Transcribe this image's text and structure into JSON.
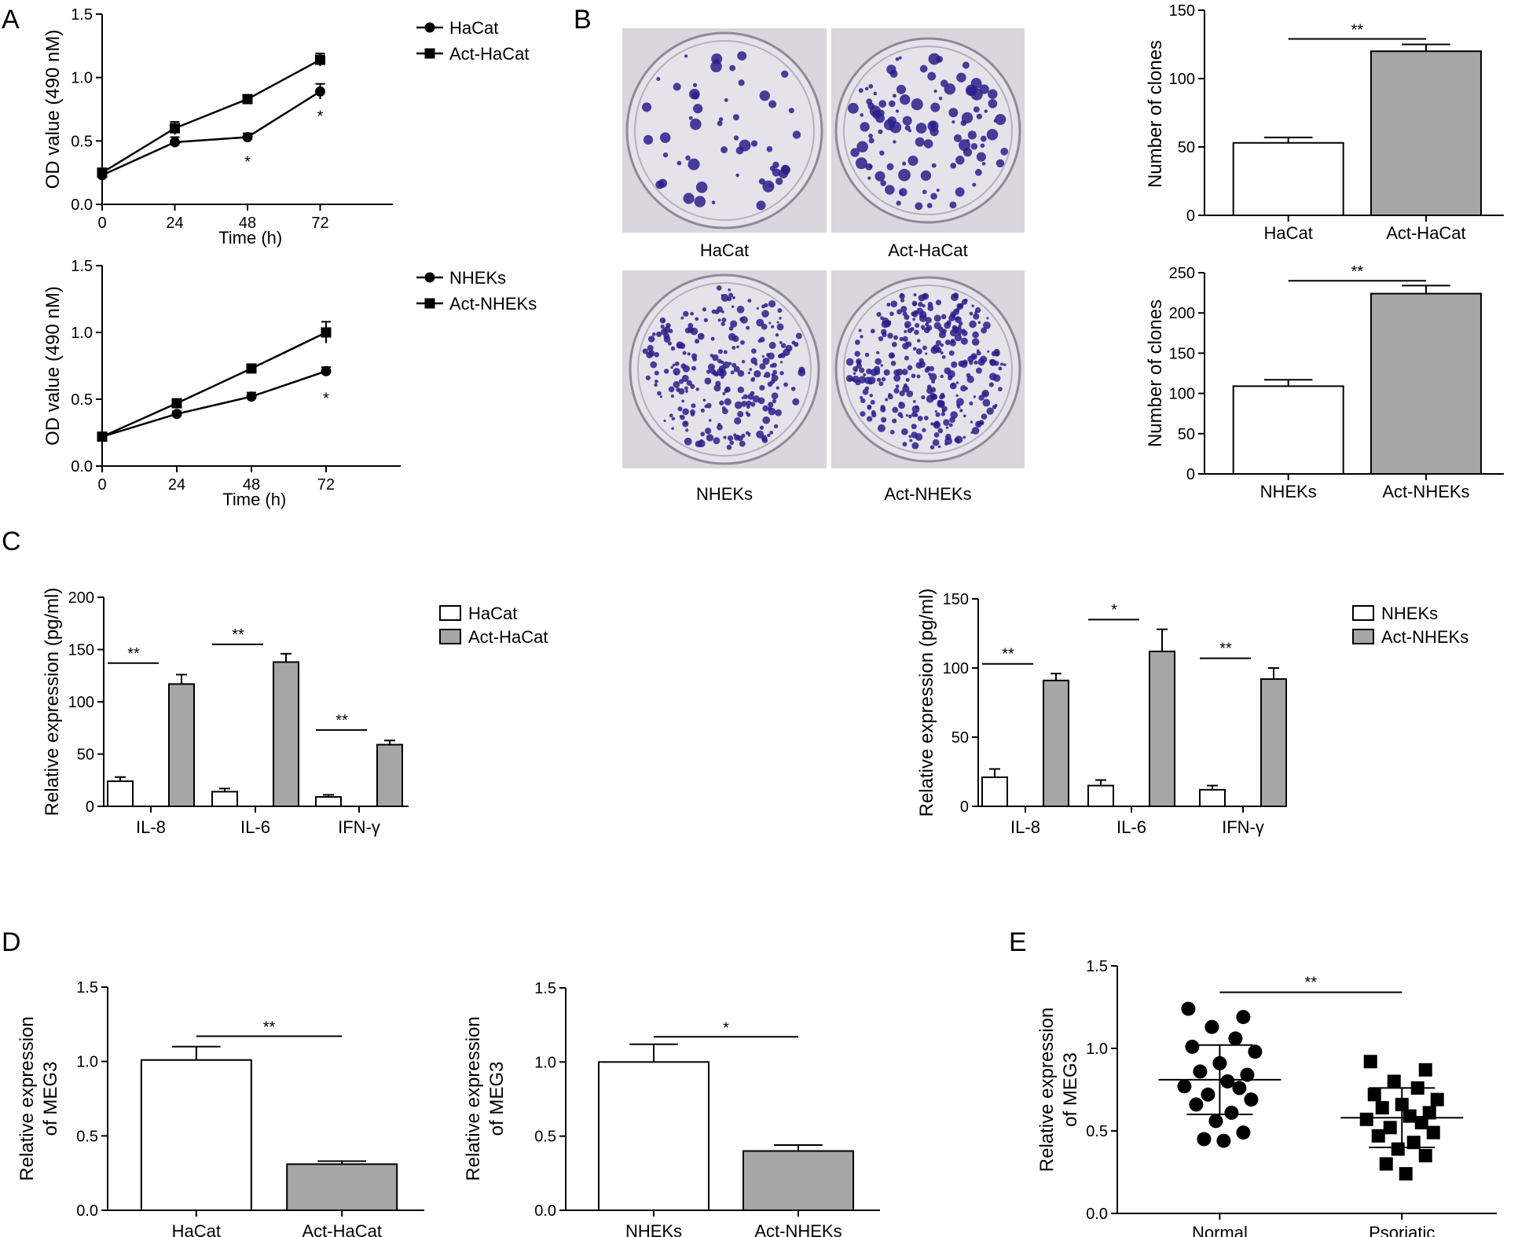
{
  "panel_labels": [
    "A",
    "B",
    "C",
    "D",
    "E"
  ],
  "photos": [
    {
      "label": "HaCat",
      "dots": 55,
      "style": "few"
    },
    {
      "label": "Act-HaCat",
      "dots": 110,
      "style": "few"
    },
    {
      "label": "NHEKs",
      "dots": 260,
      "style": "many"
    },
    {
      "label": "Act-NHEKs",
      "dots": 330,
      "style": "many"
    }
  ],
  "colors": {
    "control": "#ffffff",
    "act": "#a6a6a6",
    "ink": "#000000",
    "dish": "#cfcbd6",
    "colony": "#2a1f8a"
  },
  "chart_data": [
    {
      "id": "A1",
      "type": "line",
      "xlabel": "Time (h)",
      "ylabel": "OD value (490 nM)",
      "x": [
        0,
        24,
        48,
        72
      ],
      "xticks": [
        0,
        24,
        48,
        72
      ],
      "xlim": [
        0,
        96
      ],
      "ylim": [
        0,
        1.5
      ],
      "yticks": [
        0.0,
        0.5,
        1.0,
        1.5
      ],
      "series": [
        {
          "name": "HaCat",
          "marker": "circle",
          "values": [
            0.23,
            0.49,
            0.53,
            0.89
          ],
          "errors": [
            0.02,
            0.04,
            0.03,
            0.06
          ]
        },
        {
          "name": "Act-HaCat",
          "marker": "square",
          "values": [
            0.25,
            0.6,
            0.83,
            1.14
          ],
          "errors": [
            0.02,
            0.05,
            0.02,
            0.05
          ]
        }
      ],
      "annotations": [
        {
          "x": 48,
          "y": 0.38,
          "text": "*"
        },
        {
          "x": 72,
          "y": 0.74,
          "text": "*"
        }
      ],
      "legend": "right"
    },
    {
      "id": "A2",
      "type": "line",
      "xlabel": "Time (h)",
      "ylabel": "OD value (490 nM)",
      "x": [
        0,
        24,
        48,
        72
      ],
      "xticks": [
        0,
        24,
        48,
        72
      ],
      "xlim": [
        0,
        96
      ],
      "ylim": [
        0,
        1.5
      ],
      "yticks": [
        0.0,
        0.5,
        1.0,
        1.5
      ],
      "series": [
        {
          "name": "NHEKs",
          "marker": "circle",
          "values": [
            0.22,
            0.39,
            0.52,
            0.71
          ],
          "errors": [
            0.02,
            0.02,
            0.03,
            0.03
          ]
        },
        {
          "name": "Act-NHEKs",
          "marker": "square",
          "values": [
            0.22,
            0.47,
            0.73,
            1.0
          ],
          "errors": [
            0.02,
            0.02,
            0.03,
            0.08
          ]
        }
      ],
      "annotations": [
        {
          "x": 72,
          "y": 0.55,
          "text": "*"
        }
      ],
      "legend": "right"
    },
    {
      "id": "B1",
      "type": "bar",
      "categories": [
        "HaCat",
        "Act-HaCat"
      ],
      "values": [
        53,
        120
      ],
      "errors": [
        4,
        5
      ],
      "ylabel": "Number of clones",
      "ylim": [
        0,
        150
      ],
      "yticks": [
        0,
        50,
        100,
        150
      ],
      "sig": [
        {
          "from": 0,
          "to": 1,
          "y": 129,
          "text": "**"
        }
      ]
    },
    {
      "id": "B2",
      "type": "bar",
      "categories": [
        "NHEKs",
        "Act-NHEKs"
      ],
      "values": [
        109,
        224
      ],
      "errors": [
        8,
        10
      ],
      "ylabel": "Number of clones",
      "ylim": [
        0,
        250
      ],
      "yticks": [
        0,
        50,
        100,
        150,
        200,
        250
      ],
      "sig": [
        {
          "from": 0,
          "to": 1,
          "y": 240,
          "text": "**"
        }
      ]
    },
    {
      "id": "C1",
      "type": "bar",
      "categories": [
        "IL-8",
        "IL-6",
        "IFN-γ"
      ],
      "ylabel": "Relative expression (pg/ml)",
      "ylim": [
        0,
        200
      ],
      "yticks": [
        0,
        50,
        100,
        150,
        200
      ],
      "series": [
        {
          "name": "HaCat",
          "values": [
            24,
            14,
            9
          ],
          "errors": [
            4,
            3,
            2
          ]
        },
        {
          "name": "Act-HaCat",
          "values": [
            117,
            138,
            59
          ],
          "errors": [
            9,
            8,
            4
          ]
        }
      ],
      "sig": [
        {
          "group": 0,
          "y": 137,
          "text": "**"
        },
        {
          "group": 1,
          "y": 155,
          "text": "**"
        },
        {
          "group": 2,
          "y": 73,
          "text": "**"
        }
      ],
      "legend": "right"
    },
    {
      "id": "C2",
      "type": "bar",
      "categories": [
        "IL-8",
        "IL-6",
        "IFN-γ"
      ],
      "ylabel": "Relative expression (pg/ml)",
      "ylim": [
        0,
        150
      ],
      "yticks": [
        0,
        50,
        100,
        150
      ],
      "series": [
        {
          "name": "NHEKs",
          "values": [
            21,
            15,
            12
          ],
          "errors": [
            6,
            4,
            3
          ]
        },
        {
          "name": "Act-NHEKs",
          "values": [
            91,
            112,
            92
          ],
          "errors": [
            5,
            16,
            8
          ]
        }
      ],
      "sig": [
        {
          "group": 0,
          "y": 103,
          "text": "**"
        },
        {
          "group": 1,
          "y": 135,
          "text": "*"
        },
        {
          "group": 2,
          "y": 107,
          "text": "**"
        }
      ],
      "legend": "right"
    },
    {
      "id": "D1",
      "type": "bar",
      "categories": [
        "HaCat",
        "Act-HaCat"
      ],
      "values": [
        1.01,
        0.31
      ],
      "errors": [
        0.09,
        0.02
      ],
      "ylabel": "Relative expression of MEG3",
      "ylim": [
        0,
        1.5
      ],
      "yticks": [
        0.0,
        0.5,
        1.0,
        1.5
      ],
      "sig": [
        {
          "from": 0,
          "to": 1,
          "y": 1.17,
          "text": "**"
        }
      ]
    },
    {
      "id": "D2",
      "type": "bar",
      "categories": [
        "NHEKs",
        "Act-NHEKs"
      ],
      "values": [
        1.0,
        0.4
      ],
      "errors": [
        0.12,
        0.04
      ],
      "ylabel": "Relative expression of MEG3",
      "ylim": [
        0,
        1.5
      ],
      "yticks": [
        0.0,
        0.5,
        1.0,
        1.5
      ],
      "sig": [
        {
          "from": 0,
          "to": 1,
          "y": 1.17,
          "text": "*"
        }
      ]
    },
    {
      "id": "E",
      "type": "scatter",
      "categories": [
        "Normal",
        "Psoriatic"
      ],
      "ylabel": "Relative expression of MEG3",
      "ylim": [
        0,
        1.5
      ],
      "yticks": [
        0.0,
        0.5,
        1.0,
        1.5
      ],
      "series": [
        {
          "name": "Normal",
          "marker": "circle",
          "mean": 0.81,
          "sd": 0.21,
          "values": [
            1.24,
            1.19,
            1.13,
            1.06,
            1.01,
            0.98,
            0.91,
            0.86,
            0.84,
            0.8,
            0.77,
            0.76,
            0.72,
            0.69,
            0.66,
            0.61,
            0.56,
            0.49,
            0.45,
            0.44
          ]
        },
        {
          "name": "Psoriatic",
          "marker": "square",
          "mean": 0.58,
          "sd": 0.18,
          "values": [
            0.92,
            0.87,
            0.8,
            0.76,
            0.72,
            0.69,
            0.66,
            0.64,
            0.61,
            0.59,
            0.57,
            0.55,
            0.52,
            0.49,
            0.47,
            0.43,
            0.39,
            0.35,
            0.3,
            0.24
          ]
        }
      ],
      "sig": [
        {
          "from": 0,
          "to": 1,
          "y": 1.34,
          "text": "**"
        }
      ]
    }
  ]
}
